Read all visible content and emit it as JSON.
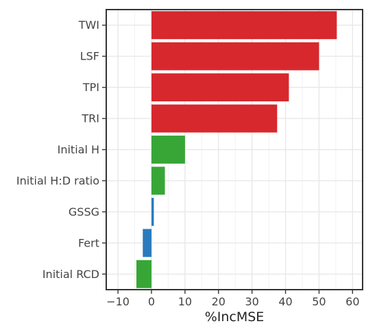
{
  "chart_data": {
    "type": "bar",
    "orientation": "horizontal",
    "categories": [
      "TWI",
      "LSF",
      "TPI",
      "TRI",
      "Initial H",
      "Initial H:D ratio",
      "GSSG",
      "Fert",
      "Initial RCD"
    ],
    "values": [
      55.3,
      50.0,
      41.0,
      37.5,
      10.0,
      4.0,
      0.7,
      -2.6,
      -4.5
    ],
    "bar_colors": [
      "#d7282d",
      "#d7282d",
      "#d7282d",
      "#d7282d",
      "#37a637",
      "#37a637",
      "#2a7bbd",
      "#2a7bbd",
      "#37a637"
    ],
    "xlabel": "%IncMSE",
    "ylabel": "",
    "xlim": [
      -13.5,
      63
    ],
    "xticks": [
      -10,
      0,
      10,
      20,
      30,
      40,
      50,
      60
    ],
    "xtick_labels": [
      "−10",
      "0",
      "10",
      "20",
      "30",
      "40",
      "50",
      "60"
    ],
    "grid": true,
    "legend": "none"
  }
}
